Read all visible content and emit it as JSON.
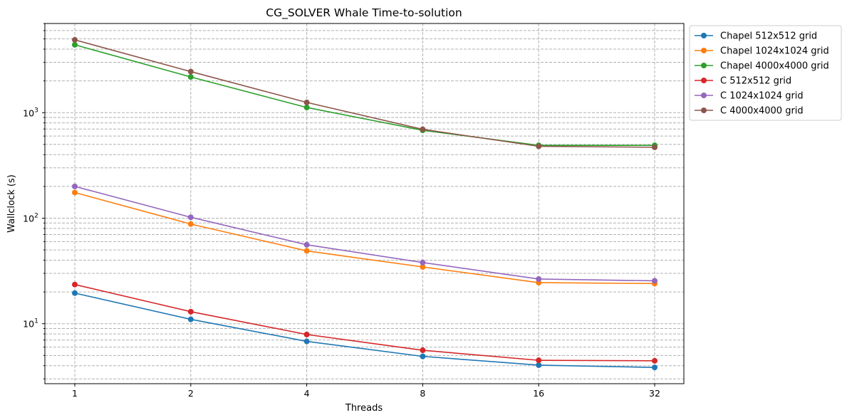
{
  "chart_data": {
    "type": "line",
    "title": "CG_SOLVER Whale Time-to-solution",
    "xlabel": "Threads",
    "ylabel": "Wallclock (s)",
    "y_scale": "log",
    "ylim": [
      2.7,
      7000
    ],
    "x_scale": "log2",
    "categories": [
      "1",
      "2",
      "4",
      "8",
      "16",
      "32"
    ],
    "x": [
      1,
      2,
      4,
      8,
      16,
      32
    ],
    "y_ticks": [
      {
        "value": 10,
        "base": "10",
        "exp": "1"
      },
      {
        "value": 100,
        "base": "10",
        "exp": "2"
      },
      {
        "value": 1000,
        "base": "10",
        "exp": "3"
      }
    ],
    "grid": "on (major and minor, dashed)",
    "legend_position": "outside upper right",
    "marker": "circle",
    "series": [
      {
        "name": "Chapel 512x512 grid",
        "color": "#1f77b4",
        "values": [
          19.5,
          11.0,
          6.8,
          4.9,
          4.05,
          3.85
        ]
      },
      {
        "name": "Chapel 1024x1024 grid",
        "color": "#ff7f0e",
        "values": [
          175,
          88,
          49,
          34.5,
          24.5,
          24
        ]
      },
      {
        "name": "Chapel 4000x4000 grid",
        "color": "#2ca02c",
        "values": [
          4400,
          2180,
          1120,
          680,
          490,
          490
        ]
      },
      {
        "name": "C 512x512 grid",
        "color": "#d62728",
        "values": [
          23.5,
          13.0,
          7.9,
          5.6,
          4.5,
          4.45
        ]
      },
      {
        "name": "C 1024x1024 grid",
        "color": "#9467bd",
        "values": [
          200,
          102,
          56,
          38,
          26.5,
          25.5
        ]
      },
      {
        "name": "C 4000x4000 grid",
        "color": "#8c564b",
        "values": [
          4900,
          2450,
          1250,
          695,
          480,
          470
        ]
      }
    ]
  }
}
